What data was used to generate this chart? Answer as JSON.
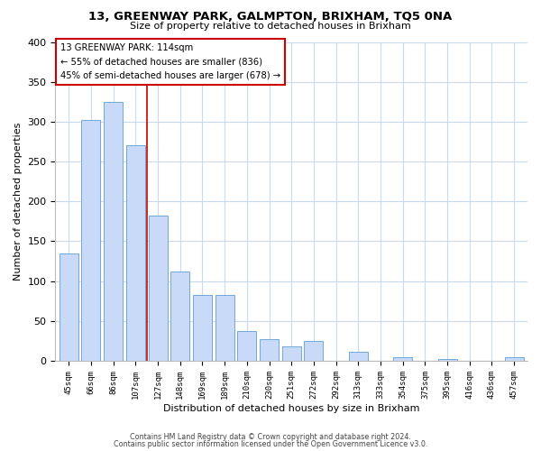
{
  "title": "13, GREENWAY PARK, GALMPTON, BRIXHAM, TQ5 0NA",
  "subtitle": "Size of property relative to detached houses in Brixham",
  "xlabel": "Distribution of detached houses by size in Brixham",
  "ylabel": "Number of detached properties",
  "bin_labels": [
    "45sqm",
    "66sqm",
    "86sqm",
    "107sqm",
    "127sqm",
    "148sqm",
    "169sqm",
    "189sqm",
    "210sqm",
    "230sqm",
    "251sqm",
    "272sqm",
    "292sqm",
    "313sqm",
    "333sqm",
    "354sqm",
    "375sqm",
    "395sqm",
    "416sqm",
    "436sqm",
    "457sqm"
  ],
  "bar_heights": [
    135,
    302,
    325,
    270,
    182,
    112,
    83,
    83,
    37,
    27,
    18,
    25,
    0,
    11,
    0,
    5,
    0,
    2,
    0,
    0,
    4
  ],
  "bar_color": "#c9daf8",
  "bar_edge_color": "#6fa8dc",
  "bar_width": 0.85,
  "highlight_line_color": "#cc0000",
  "annotation_line1": "13 GREENWAY PARK: 114sqm",
  "annotation_line2": "← 55% of detached houses are smaller (836)",
  "annotation_line3": "45% of semi-detached houses are larger (678) →",
  "ylim": [
    0,
    400
  ],
  "yticks": [
    0,
    50,
    100,
    150,
    200,
    250,
    300,
    350,
    400
  ],
  "footer_line1": "Contains HM Land Registry data © Crown copyright and database right 2024.",
  "footer_line2": "Contains public sector information licensed under the Open Government Licence v3.0.",
  "bg_color": "#ffffff",
  "grid_color": "#c9daf0",
  "highlight_bar_index": 3
}
